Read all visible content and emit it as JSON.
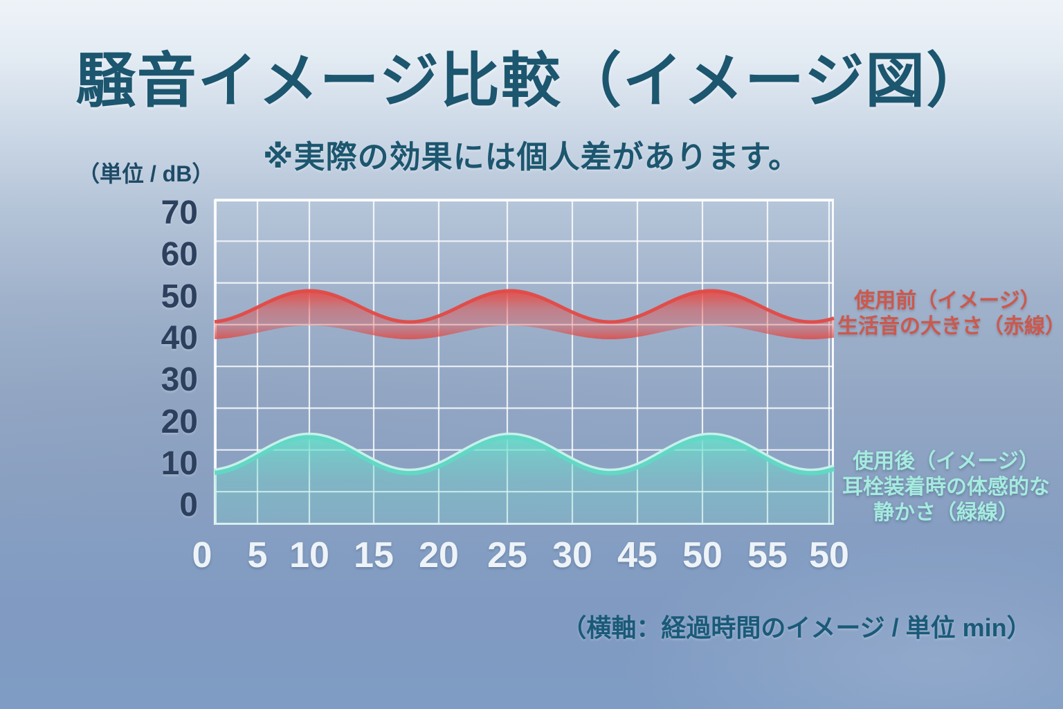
{
  "title": "騒音イメージ比較（イメージ図）",
  "subtitle": "※実際の効果には個人差があります。",
  "y_axis": {
    "unit_label": "（単位 / dB）",
    "ticks": [
      "70",
      "60",
      "50",
      "40",
      "30",
      "20",
      "10",
      "0"
    ]
  },
  "x_axis": {
    "ticks": [
      "0",
      "5",
      "10",
      "15",
      "20",
      "25",
      "30",
      "45",
      "50",
      "55",
      "50"
    ],
    "note": "（横軸：経過時間のイメージ / 単位 min）"
  },
  "legend": {
    "before": {
      "lines": [
        "使用前（イメージ）",
        "生活音の大きさ（赤線）"
      ],
      "color": "#cb594d"
    },
    "after": {
      "lines": [
        "使用後（イメージ）",
        "耳栓装着時の体感的な",
        "静かさ（緑線）"
      ],
      "color": "#a6ebdf"
    }
  },
  "colors": {
    "title": "#1c566f",
    "subtitle": "#1c566f",
    "y_unit": "#1e4a66",
    "y_tick": "#2c405e",
    "x_tick": "#edf3f7",
    "x_note": "#1a5a78",
    "grid": "#ffffff",
    "red_band": "#e2504c",
    "teal_band": "#68dcc8",
    "teal_rim": "#d4f7f0"
  },
  "chart_data": {
    "type": "area",
    "title": "騒音イメージ比較（イメージ図）",
    "y_unit": "dB",
    "ylim": [
      0,
      70
    ],
    "grid": true,
    "x_tick_labels": [
      "0",
      "5",
      "10",
      "15",
      "20",
      "25",
      "30",
      "45",
      "50",
      "55",
      "50"
    ],
    "x_axis_note": "（横軸：経過時間のイメージ / 単位 min）",
    "legend_position": "right",
    "series": [
      {
        "name": "使用前（イメージ）生活音の大きさ（赤線）",
        "color": "#e2504c",
        "style": "sinusoidal ribbon, crests at ticks 10 / 25 / 50",
        "upper_dB_at_ticks": [
          41,
          44,
          48,
          43,
          42,
          48,
          43,
          42,
          48,
          44,
          41
        ],
        "lower_dB_at_ticks": [
          36,
          38,
          40,
          38,
          37,
          40,
          38,
          37,
          40,
          38,
          37
        ]
      },
      {
        "name": "使用後（イメージ）耳栓装着時の体感的な静かさ（緑線）",
        "color": "#68dcc8",
        "style": "sinusoidal area filled to baseline, crests at ticks 10 / 25 / 50",
        "upper_dB_at_ticks": [
          5,
          9,
          13,
          7,
          6,
          13,
          7,
          6,
          13,
          8,
          5
        ]
      }
    ]
  }
}
